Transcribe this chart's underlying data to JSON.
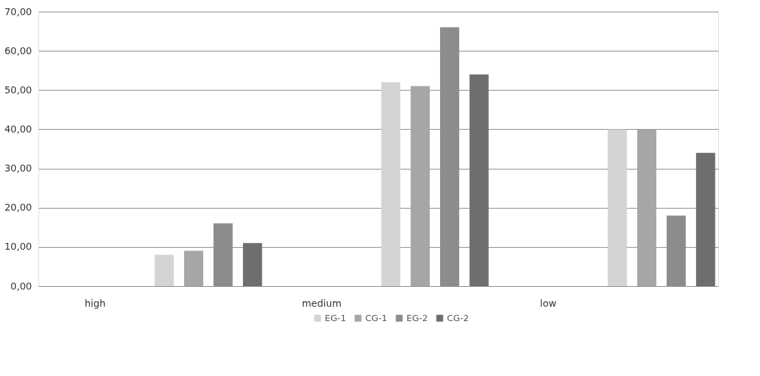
{
  "chart_data": {
    "type": "bar",
    "categories": [
      "high",
      null,
      "medium",
      null,
      "low",
      null
    ],
    "series": [
      {
        "name": "EG-1",
        "color": "#d4d4d4",
        "values": [
          null,
          8,
          null,
          52,
          null,
          40
        ]
      },
      {
        "name": "CG-1",
        "color": "#a6a6a6",
        "values": [
          null,
          9,
          null,
          51,
          null,
          40
        ]
      },
      {
        "name": "EG-2",
        "color": "#8c8c8c",
        "values": [
          null,
          16,
          null,
          66,
          null,
          18
        ]
      },
      {
        "name": "CG-2",
        "color": "#6e6e6e",
        "values": [
          null,
          11,
          null,
          54,
          null,
          34
        ]
      }
    ],
    "ylim": [
      0,
      70
    ],
    "yticks": [
      {
        "value": 0,
        "label": "0,00"
      },
      {
        "value": 10,
        "label": "10,00"
      },
      {
        "value": 20,
        "label": "20,00"
      },
      {
        "value": 30,
        "label": "30,00"
      },
      {
        "value": 40,
        "label": "40,00"
      },
      {
        "value": 50,
        "label": "50,00"
      },
      {
        "value": 60,
        "label": "60,00"
      },
      {
        "value": 70,
        "label": "70,00"
      }
    ],
    "grid": "y",
    "legend": "bottom"
  }
}
